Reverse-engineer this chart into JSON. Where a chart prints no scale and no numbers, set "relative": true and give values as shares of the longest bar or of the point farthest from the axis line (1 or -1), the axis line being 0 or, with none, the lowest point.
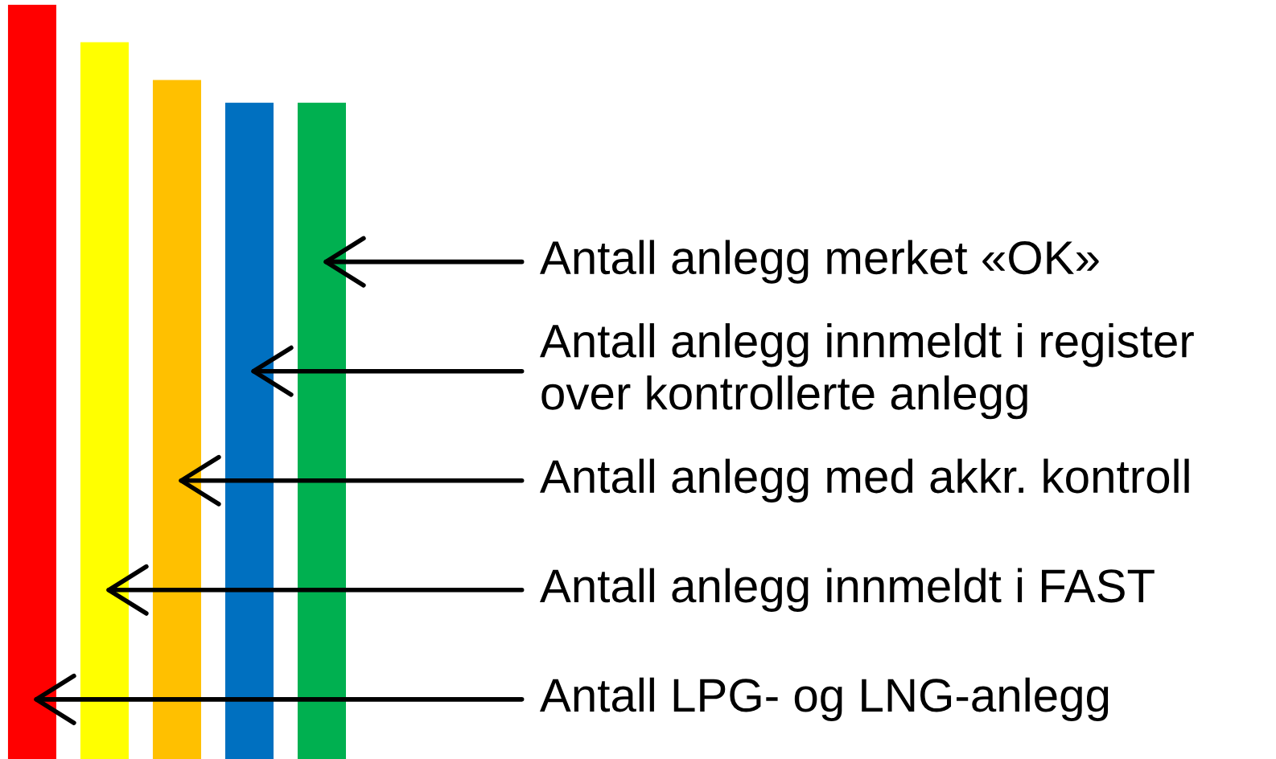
{
  "chart_data": {
    "type": "bar",
    "relative": true,
    "categories": [
      null,
      null,
      null,
      null,
      null
    ],
    "values": [
      1,
      0.95,
      0.9,
      0.87,
      0.87
    ],
    "colors": [
      "#ff0000",
      "#ffff00",
      "#ffc000",
      "#0070c0",
      "#00b050"
    ],
    "annotations": [
      "Antall anlegg merket «OK»",
      "Antall anlegg innmeldt i register\nover kontrollerte anlegg",
      "Antall anlegg med akkr. kontroll",
      "Antall anlegg innmeldt i FAST",
      "Antall LPG- og LNG-anlegg"
    ]
  }
}
